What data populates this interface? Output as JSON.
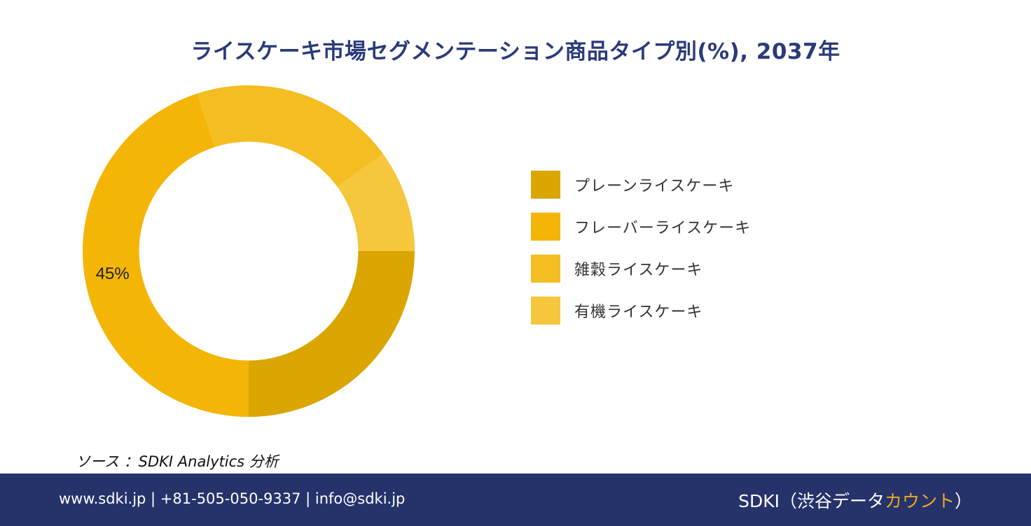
{
  "colors": {
    "title": "#2b3a7a",
    "footer_bg": "#26336b",
    "brand_accent": "#f0a81c"
  },
  "chart_data": {
    "type": "pie",
    "title": "ライスケーキ市場セグメンテーション商品タイプ別(%), 2037年",
    "categories": [
      "プレーンライスケーキ",
      "フレーバーライスケーキ",
      "雑穀ライスケーキ",
      "有機ライスケーキ"
    ],
    "values": [
      25,
      45,
      20,
      10
    ],
    "colors": [
      "#dba602",
      "#f4b506",
      "#f4bd22",
      "#f6c63c"
    ],
    "data_labels": [
      "",
      "45%",
      "",
      ""
    ],
    "hole": 0.66,
    "legend_position": "right"
  },
  "source_text": "ソース ：SDKI Analytics 分析",
  "footer": {
    "contact": "www.sdki.jp | +81-505-050-9337 | info@sdki.jp",
    "brand_main": "SDKI（渋谷データ",
    "brand_accent": "カウント",
    "brand_close": "）"
  }
}
